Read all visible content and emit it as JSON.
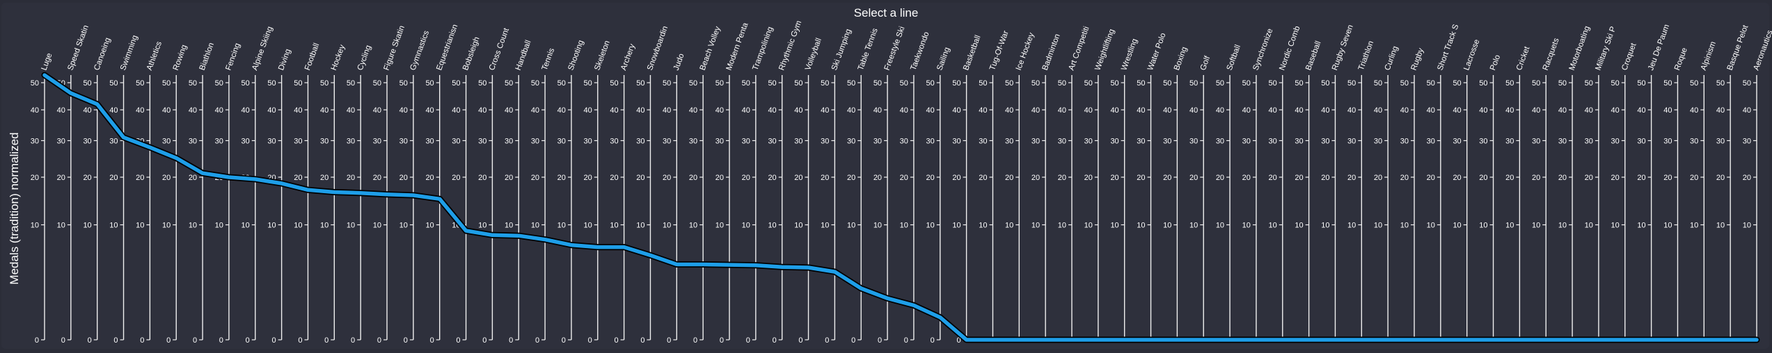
{
  "chart_data": {
    "type": "parallel-coordinates",
    "title": "Select a line",
    "ylabel": "Medals (tradition) normalized",
    "y_scale": "sqrt",
    "ylim": [
      0,
      53
    ],
    "ticks": [
      0,
      10,
      20,
      30,
      40,
      50
    ],
    "line_color": "#1e9ee8",
    "line_outline_color": "#000000",
    "axes": [
      {
        "name": "Luge",
        "value": 53
      },
      {
        "name": "Speed Skatin",
        "value": 46
      },
      {
        "name": "Canoeing",
        "value": 42
      },
      {
        "name": "Swimming",
        "value": 31
      },
      {
        "name": "Athletics",
        "value": 28
      },
      {
        "name": "Rowing",
        "value": 25
      },
      {
        "name": "Biathlon",
        "value": 21
      },
      {
        "name": "Fencing",
        "value": 20
      },
      {
        "name": "Alpine Skiing",
        "value": 19.5
      },
      {
        "name": "Diving",
        "value": 18.5
      },
      {
        "name": "Football",
        "value": 17
      },
      {
        "name": "Hockey",
        "value": 16.5
      },
      {
        "name": "Cycling",
        "value": 16.3
      },
      {
        "name": "Figure Skatin",
        "value": 16
      },
      {
        "name": "Gymnastics",
        "value": 15.8
      },
      {
        "name": "Equestrianisn",
        "value": 15
      },
      {
        "name": "Bobsleigh",
        "value": 9
      },
      {
        "name": "Cross Count",
        "value": 8.3
      },
      {
        "name": "Handball",
        "value": 8.2
      },
      {
        "name": "Tennis",
        "value": 7.6
      },
      {
        "name": "Shooting",
        "value": 6.8
      },
      {
        "name": "Skeleton",
        "value": 6.5
      },
      {
        "name": "Archery",
        "value": 6.5
      },
      {
        "name": "Snowboardin",
        "value": 5.4
      },
      {
        "name": "Judo",
        "value": 4.3
      },
      {
        "name": "Beach Volley",
        "value": 4.3
      },
      {
        "name": "Modern Penta",
        "value": 4.25
      },
      {
        "name": "Trampolining",
        "value": 4.2
      },
      {
        "name": "Rhythmic Gym",
        "value": 4.0
      },
      {
        "name": "Volleyball",
        "value": 3.95
      },
      {
        "name": "Ski Jumping",
        "value": 3.5
      },
      {
        "name": "Table Tennis",
        "value": 2.0
      },
      {
        "name": "Freestyle Ski",
        "value": 1.3
      },
      {
        "name": "Taekwondo",
        "value": 0.9
      },
      {
        "name": "Sailing",
        "value": 0.38
      },
      {
        "name": "Basketball",
        "value": 0
      },
      {
        "name": "Tug-Of-War",
        "value": 0
      },
      {
        "name": "Ice Hockey",
        "value": 0
      },
      {
        "name": "Badminton",
        "value": 0
      },
      {
        "name": "Art Competiti",
        "value": 0
      },
      {
        "name": "Weightlifting",
        "value": 0
      },
      {
        "name": "Wrestling",
        "value": 0
      },
      {
        "name": "Water Polo",
        "value": 0
      },
      {
        "name": "Boxing",
        "value": 0
      },
      {
        "name": "Golf",
        "value": 0
      },
      {
        "name": "Softball",
        "value": 0
      },
      {
        "name": "Synchronize",
        "value": 0
      },
      {
        "name": "Nordic Comb",
        "value": 0
      },
      {
        "name": "Baseball",
        "value": 0
      },
      {
        "name": "Rugby Seven",
        "value": 0
      },
      {
        "name": "Triathlon",
        "value": 0
      },
      {
        "name": "Curling",
        "value": 0
      },
      {
        "name": "Rugby",
        "value": 0
      },
      {
        "name": "Short Track S",
        "value": 0
      },
      {
        "name": "Lacrosse",
        "value": 0
      },
      {
        "name": "Polo",
        "value": 0
      },
      {
        "name": "Cricket",
        "value": 0
      },
      {
        "name": "Racquets",
        "value": 0
      },
      {
        "name": "Motorboating",
        "value": 0
      },
      {
        "name": "Military Ski P",
        "value": 0
      },
      {
        "name": "Croquet",
        "value": 0
      },
      {
        "name": "Jeu De Paum",
        "value": 0
      },
      {
        "name": "Roque",
        "value": 0
      },
      {
        "name": "Alpinism",
        "value": 0
      },
      {
        "name": "Basque Pelot",
        "value": 0
      },
      {
        "name": "Aeronautics",
        "value": 0
      }
    ]
  }
}
